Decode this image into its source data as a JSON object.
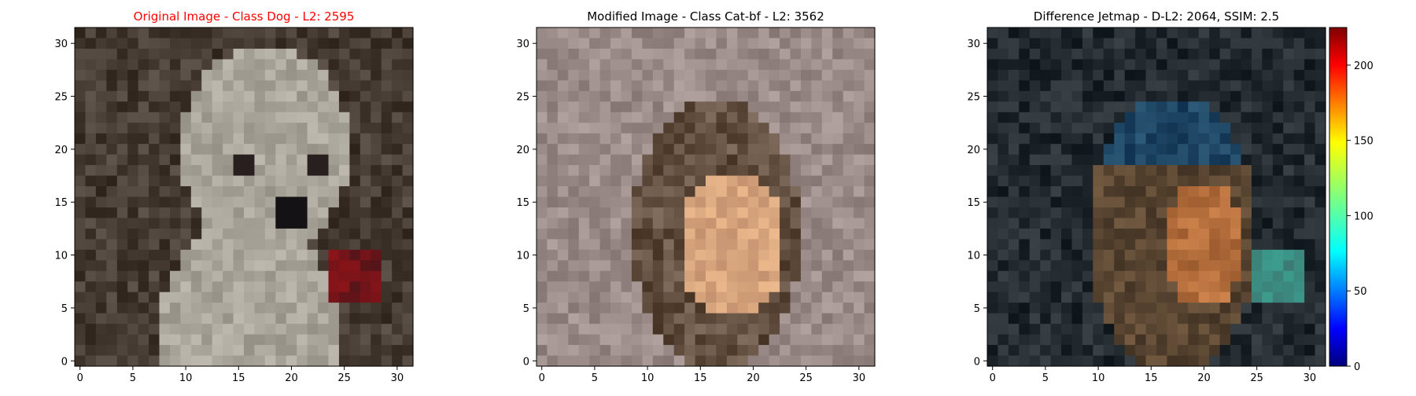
{
  "chart_data": [
    {
      "type": "heatmap",
      "title": "Original Image - Class Dog - L2: 2595",
      "title_color": "#ff0000",
      "image_size": [
        32,
        32
      ],
      "xlim": [
        -0.5,
        31.5
      ],
      "ylim": [
        31.5,
        -0.5
      ],
      "xticks": [
        0,
        5,
        10,
        15,
        20,
        25,
        30
      ],
      "yticks": [
        0,
        5,
        10,
        15,
        20,
        25,
        30
      ],
      "content": "pixelated photo of a white dog on a dark background with a red collar"
    },
    {
      "type": "heatmap",
      "title": "Modified Image - Class Cat-bf - L2: 3562",
      "title_color": "#000000",
      "image_size": [
        32,
        32
      ],
      "xlim": [
        -0.5,
        31.5
      ],
      "ylim": [
        31.5,
        -0.5
      ],
      "xticks": [
        0,
        5,
        10,
        15,
        20,
        25,
        30
      ],
      "yticks": [
        0,
        5,
        10,
        15,
        20,
        25,
        30
      ],
      "content": "pixelated photo of a brown and tan cat on a grey-mauve background"
    },
    {
      "type": "heatmap",
      "title": "Difference Jetmap - D-L2: 2064, SSIM: 2.5",
      "title_color": "#000000",
      "image_size": [
        32,
        32
      ],
      "xlim": [
        -0.5,
        31.5
      ],
      "ylim": [
        31.5,
        -0.5
      ],
      "xticks": [
        0,
        5,
        10,
        15,
        20,
        25,
        30
      ],
      "yticks": [
        0,
        5,
        10,
        15,
        20,
        25,
        30
      ],
      "content": "pixelated difference image, dark with blue and brown regions",
      "colorbar": {
        "colormap": "jet",
        "range": [
          0,
          225
        ],
        "ticks": [
          0,
          50,
          100,
          150,
          200
        ]
      }
    }
  ]
}
